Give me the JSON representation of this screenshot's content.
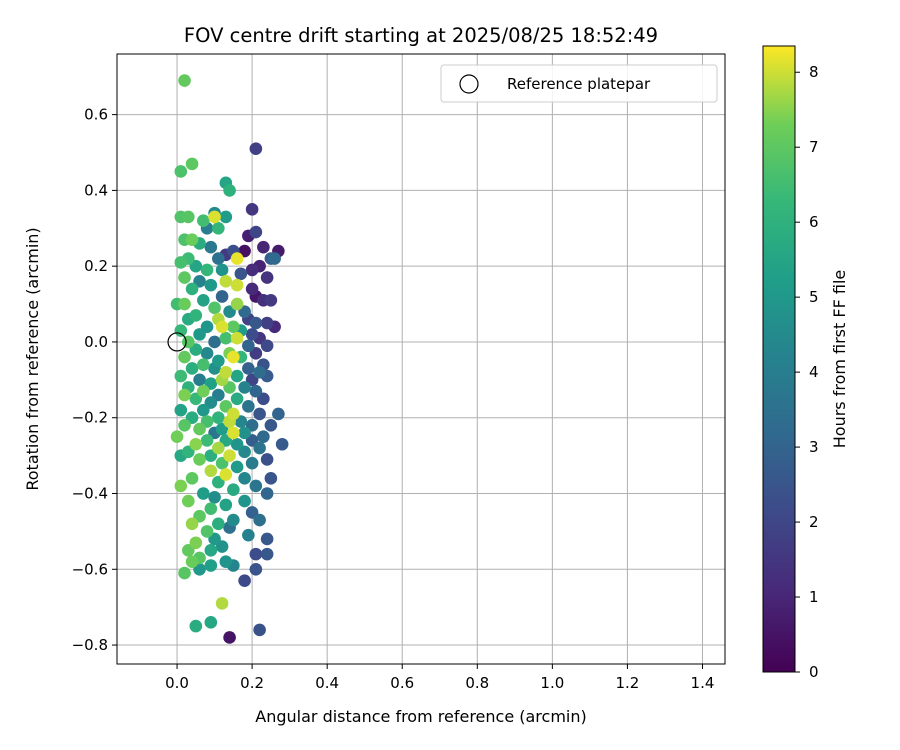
{
  "chart_data": {
    "type": "scatter",
    "title": "FOV centre drift starting at 2025/08/25 18:52:49",
    "xlabel": "Angular distance from reference (arcmin)",
    "ylabel": "Rotation from reference (arcmin)",
    "xlim": [
      -0.16,
      1.46
    ],
    "ylim": [
      -0.85,
      0.76
    ],
    "xticks": [
      "0.0",
      "0.2",
      "0.4",
      "0.6",
      "0.8",
      "1.0",
      "1.2",
      "1.4"
    ],
    "xtick_values": [
      0.0,
      0.2,
      0.4,
      0.6,
      0.8,
      1.0,
      1.2,
      1.4
    ],
    "yticks": [
      "−0.8",
      "−0.6",
      "−0.4",
      "−0.2",
      "0.0",
      "0.2",
      "0.4",
      "0.6"
    ],
    "ytick_values": [
      -0.8,
      -0.6,
      -0.4,
      -0.2,
      0.0,
      0.2,
      0.4,
      0.6
    ],
    "grid": true,
    "legend": {
      "placement": "top-right",
      "entries": [
        "Reference platepar"
      ]
    },
    "reference_point": {
      "x": 0.0,
      "y": 0.0,
      "marker": "open-circle"
    },
    "colorbar": {
      "label": "Hours from first FF file",
      "colormap": "viridis",
      "range": [
        0,
        8.35
      ],
      "ticks": [
        "0",
        "1",
        "2",
        "3",
        "4",
        "5",
        "6",
        "7",
        "8"
      ],
      "tick_values": [
        0,
        1,
        2,
        3,
        4,
        5,
        6,
        7,
        8
      ]
    },
    "points": [
      {
        "x": 0.02,
        "y": 0.69,
        "c": 7.1
      },
      {
        "x": 0.04,
        "y": 0.47,
        "c": 7.0
      },
      {
        "x": 0.01,
        "y": 0.45,
        "c": 6.7
      },
      {
        "x": 0.21,
        "y": 0.51,
        "c": 1.8
      },
      {
        "x": 0.13,
        "y": 0.42,
        "c": 5.5
      },
      {
        "x": 0.14,
        "y": 0.4,
        "c": 6.0
      },
      {
        "x": 0.2,
        "y": 0.35,
        "c": 1.5
      },
      {
        "x": 0.1,
        "y": 0.34,
        "c": 4.5
      },
      {
        "x": 0.13,
        "y": 0.33,
        "c": 5.2
      },
      {
        "x": 0.01,
        "y": 0.33,
        "c": 6.8
      },
      {
        "x": 0.03,
        "y": 0.33,
        "c": 6.9
      },
      {
        "x": 0.07,
        "y": 0.32,
        "c": 6.5
      },
      {
        "x": 0.1,
        "y": 0.33,
        "c": 8.1
      },
      {
        "x": 0.21,
        "y": 0.29,
        "c": 2.0
      },
      {
        "x": 0.19,
        "y": 0.28,
        "c": 0.8
      },
      {
        "x": 0.11,
        "y": 0.3,
        "c": 6.2
      },
      {
        "x": 0.08,
        "y": 0.3,
        "c": 4.0
      },
      {
        "x": 0.04,
        "y": 0.27,
        "c": 7.2
      },
      {
        "x": 0.02,
        "y": 0.27,
        "c": 6.7
      },
      {
        "x": 0.06,
        "y": 0.26,
        "c": 5.8
      },
      {
        "x": 0.09,
        "y": 0.25,
        "c": 3.8
      },
      {
        "x": 0.18,
        "y": 0.24,
        "c": 0.4
      },
      {
        "x": 0.23,
        "y": 0.25,
        "c": 1.0
      },
      {
        "x": 0.27,
        "y": 0.24,
        "c": 0.7
      },
      {
        "x": 0.15,
        "y": 0.24,
        "c": 2.3
      },
      {
        "x": 0.13,
        "y": 0.23,
        "c": 1.6
      },
      {
        "x": 0.25,
        "y": 0.22,
        "c": 2.8
      },
      {
        "x": 0.26,
        "y": 0.22,
        "c": 3.2
      },
      {
        "x": 0.16,
        "y": 0.22,
        "c": 8.2
      },
      {
        "x": 0.11,
        "y": 0.22,
        "c": 3.5
      },
      {
        "x": 0.03,
        "y": 0.22,
        "c": 6.4
      },
      {
        "x": 0.01,
        "y": 0.21,
        "c": 6.6
      },
      {
        "x": 0.05,
        "y": 0.2,
        "c": 5.5
      },
      {
        "x": 0.22,
        "y": 0.2,
        "c": 0.9
      },
      {
        "x": 0.2,
        "y": 0.19,
        "c": 1.2
      },
      {
        "x": 0.08,
        "y": 0.19,
        "c": 6.2
      },
      {
        "x": 0.12,
        "y": 0.19,
        "c": 4.8
      },
      {
        "x": 0.17,
        "y": 0.18,
        "c": 2.5
      },
      {
        "x": 0.24,
        "y": 0.17,
        "c": 1.4
      },
      {
        "x": 0.02,
        "y": 0.17,
        "c": 7.0
      },
      {
        "x": 0.06,
        "y": 0.16,
        "c": 4.2
      },
      {
        "x": 0.13,
        "y": 0.16,
        "c": 7.9
      },
      {
        "x": 0.16,
        "y": 0.15,
        "c": 8.0
      },
      {
        "x": 0.09,
        "y": 0.15,
        "c": 5.0
      },
      {
        "x": 0.04,
        "y": 0.14,
        "c": 6.0
      },
      {
        "x": 0.2,
        "y": 0.14,
        "c": 1.1
      },
      {
        "x": 0.21,
        "y": 0.12,
        "c": 0.6
      },
      {
        "x": 0.23,
        "y": 0.11,
        "c": 1.3
      },
      {
        "x": 0.25,
        "y": 0.11,
        "c": 1.6
      },
      {
        "x": 0.12,
        "y": 0.12,
        "c": 3.0
      },
      {
        "x": 0.07,
        "y": 0.11,
        "c": 5.4
      },
      {
        "x": 0.02,
        "y": 0.1,
        "c": 7.2
      },
      {
        "x": 0.0,
        "y": 0.1,
        "c": 6.5
      },
      {
        "x": 0.16,
        "y": 0.1,
        "c": 7.6
      },
      {
        "x": 0.1,
        "y": 0.09,
        "c": 6.8
      },
      {
        "x": 0.18,
        "y": 0.08,
        "c": 3.2
      },
      {
        "x": 0.14,
        "y": 0.08,
        "c": 4.5
      },
      {
        "x": 0.05,
        "y": 0.07,
        "c": 6.1
      },
      {
        "x": 0.03,
        "y": 0.06,
        "c": 5.7
      },
      {
        "x": 0.11,
        "y": 0.06,
        "c": 7.8
      },
      {
        "x": 0.19,
        "y": 0.06,
        "c": 1.9
      },
      {
        "x": 0.21,
        "y": 0.05,
        "c": 2.6
      },
      {
        "x": 0.24,
        "y": 0.05,
        "c": 1.8
      },
      {
        "x": 0.12,
        "y": 0.04,
        "c": 8.1
      },
      {
        "x": 0.15,
        "y": 0.04,
        "c": 7.0
      },
      {
        "x": 0.08,
        "y": 0.04,
        "c": 4.9
      },
      {
        "x": 0.26,
        "y": 0.04,
        "c": 1.1
      },
      {
        "x": 0.01,
        "y": 0.03,
        "c": 6.3
      },
      {
        "x": 0.17,
        "y": 0.03,
        "c": 5.2
      },
      {
        "x": 0.06,
        "y": 0.02,
        "c": 5.0
      },
      {
        "x": 0.2,
        "y": 0.02,
        "c": 2.2
      },
      {
        "x": 0.13,
        "y": 0.01,
        "c": 6.6
      },
      {
        "x": 0.22,
        "y": 0.01,
        "c": 1.5
      },
      {
        "x": 0.16,
        "y": 0.01,
        "c": 8.0
      },
      {
        "x": 0.03,
        "y": 0.0,
        "c": 6.9
      },
      {
        "x": 0.1,
        "y": 0.0,
        "c": 3.4
      },
      {
        "x": 0.19,
        "y": -0.01,
        "c": 3.0
      },
      {
        "x": 0.24,
        "y": -0.01,
        "c": 2.1
      },
      {
        "x": 0.05,
        "y": -0.02,
        "c": 5.8
      },
      {
        "x": 0.14,
        "y": -0.03,
        "c": 7.4
      },
      {
        "x": 0.08,
        "y": -0.03,
        "c": 4.4
      },
      {
        "x": 0.21,
        "y": -0.03,
        "c": 1.7
      },
      {
        "x": 0.02,
        "y": -0.04,
        "c": 7.1
      },
      {
        "x": 0.17,
        "y": -0.04,
        "c": 6.2
      },
      {
        "x": 0.11,
        "y": -0.05,
        "c": 5.1
      },
      {
        "x": 0.15,
        "y": -0.04,
        "c": 8.2
      },
      {
        "x": 0.07,
        "y": -0.06,
        "c": 6.6
      },
      {
        "x": 0.23,
        "y": -0.06,
        "c": 2.4
      },
      {
        "x": 0.19,
        "y": -0.07,
        "c": 2.9
      },
      {
        "x": 0.04,
        "y": -0.07,
        "c": 5.9
      },
      {
        "x": 0.13,
        "y": -0.08,
        "c": 7.9
      },
      {
        "x": 0.1,
        "y": -0.07,
        "c": 4.7
      },
      {
        "x": 0.22,
        "y": -0.08,
        "c": 3.3
      },
      {
        "x": 0.01,
        "y": -0.09,
        "c": 6.4
      },
      {
        "x": 0.16,
        "y": -0.09,
        "c": 5.5
      },
      {
        "x": 0.06,
        "y": -0.1,
        "c": 3.9
      },
      {
        "x": 0.2,
        "y": -0.1,
        "c": 2.0
      },
      {
        "x": 0.12,
        "y": -0.1,
        "c": 7.7
      },
      {
        "x": 0.24,
        "y": -0.09,
        "c": 2.7
      },
      {
        "x": 0.09,
        "y": -0.11,
        "c": 5.3
      },
      {
        "x": 0.03,
        "y": -0.12,
        "c": 6.0
      },
      {
        "x": 0.18,
        "y": -0.12,
        "c": 4.2
      },
      {
        "x": 0.14,
        "y": -0.12,
        "c": 6.9
      },
      {
        "x": 0.07,
        "y": -0.13,
        "c": 7.3
      },
      {
        "x": 0.21,
        "y": -0.13,
        "c": 3.1
      },
      {
        "x": 0.11,
        "y": -0.14,
        "c": 4.0
      },
      {
        "x": 0.02,
        "y": -0.14,
        "c": 7.4
      },
      {
        "x": 0.16,
        "y": -0.15,
        "c": 5.7
      },
      {
        "x": 0.05,
        "y": -0.15,
        "c": 6.3
      },
      {
        "x": 0.23,
        "y": -0.15,
        "c": 2.2
      },
      {
        "x": 0.09,
        "y": -0.16,
        "c": 4.6
      },
      {
        "x": 0.19,
        "y": -0.17,
        "c": 3.6
      },
      {
        "x": 0.13,
        "y": -0.17,
        "c": 7.0
      },
      {
        "x": 0.01,
        "y": -0.18,
        "c": 5.4
      },
      {
        "x": 0.07,
        "y": -0.18,
        "c": 5.0
      },
      {
        "x": 0.27,
        "y": -0.19,
        "c": 3.0
      },
      {
        "x": 0.15,
        "y": -0.19,
        "c": 8.0
      },
      {
        "x": 0.22,
        "y": -0.19,
        "c": 2.5
      },
      {
        "x": 0.11,
        "y": -0.2,
        "c": 6.1
      },
      {
        "x": 0.04,
        "y": -0.2,
        "c": 5.8
      },
      {
        "x": 0.17,
        "y": -0.21,
        "c": 4.3
      },
      {
        "x": 0.08,
        "y": -0.21,
        "c": 6.6
      },
      {
        "x": 0.14,
        "y": -0.21,
        "c": 7.9
      },
      {
        "x": 0.2,
        "y": -0.22,
        "c": 3.4
      },
      {
        "x": 0.02,
        "y": -0.22,
        "c": 6.9
      },
      {
        "x": 0.25,
        "y": -0.22,
        "c": 2.6
      },
      {
        "x": 0.12,
        "y": -0.23,
        "c": 5.2
      },
      {
        "x": 0.06,
        "y": -0.23,
        "c": 7.1
      },
      {
        "x": 0.18,
        "y": -0.24,
        "c": 4.7
      },
      {
        "x": 0.1,
        "y": -0.24,
        "c": 3.7
      },
      {
        "x": 0.15,
        "y": -0.24,
        "c": 8.1
      },
      {
        "x": 0.0,
        "y": -0.25,
        "c": 7.3
      },
      {
        "x": 0.23,
        "y": -0.25,
        "c": 3.2
      },
      {
        "x": 0.08,
        "y": -0.26,
        "c": 6.4
      },
      {
        "x": 0.13,
        "y": -0.26,
        "c": 5.6
      },
      {
        "x": 0.2,
        "y": -0.26,
        "c": 2.8
      },
      {
        "x": 0.05,
        "y": -0.27,
        "c": 7.5
      },
      {
        "x": 0.28,
        "y": -0.27,
        "c": 2.7
      },
      {
        "x": 0.16,
        "y": -0.27,
        "c": 4.9
      },
      {
        "x": 0.11,
        "y": -0.28,
        "c": 7.7
      },
      {
        "x": 0.22,
        "y": -0.28,
        "c": 3.6
      },
      {
        "x": 0.03,
        "y": -0.29,
        "c": 6.1
      },
      {
        "x": 0.18,
        "y": -0.29,
        "c": 4.4
      },
      {
        "x": 0.09,
        "y": -0.3,
        "c": 5.9
      },
      {
        "x": 0.14,
        "y": -0.3,
        "c": 8.0
      },
      {
        "x": 0.01,
        "y": -0.3,
        "c": 5.6
      },
      {
        "x": 0.24,
        "y": -0.31,
        "c": 2.3
      },
      {
        "x": 0.06,
        "y": -0.31,
        "c": 7.2
      },
      {
        "x": 0.2,
        "y": -0.32,
        "c": 3.9
      },
      {
        "x": 0.12,
        "y": -0.32,
        "c": 6.7
      },
      {
        "x": 0.16,
        "y": -0.33,
        "c": 5.1
      },
      {
        "x": 0.09,
        "y": -0.34,
        "c": 7.8
      },
      {
        "x": 0.13,
        "y": -0.35,
        "c": 8.1
      },
      {
        "x": 0.04,
        "y": -0.36,
        "c": 7.0
      },
      {
        "x": 0.18,
        "y": -0.36,
        "c": 4.3
      },
      {
        "x": 0.25,
        "y": -0.36,
        "c": 2.5
      },
      {
        "x": 0.11,
        "y": -0.37,
        "c": 6.0
      },
      {
        "x": 0.01,
        "y": -0.38,
        "c": 7.4
      },
      {
        "x": 0.21,
        "y": -0.38,
        "c": 3.7
      },
      {
        "x": 0.15,
        "y": -0.39,
        "c": 5.7
      },
      {
        "x": 0.07,
        "y": -0.4,
        "c": 5.2
      },
      {
        "x": 0.24,
        "y": -0.4,
        "c": 3.1
      },
      {
        "x": 0.1,
        "y": -0.41,
        "c": 4.6
      },
      {
        "x": 0.03,
        "y": -0.42,
        "c": 7.3
      },
      {
        "x": 0.18,
        "y": -0.42,
        "c": 4.9
      },
      {
        "x": 0.13,
        "y": -0.43,
        "c": 5.4
      },
      {
        "x": 0.09,
        "y": -0.44,
        "c": 6.5
      },
      {
        "x": 0.2,
        "y": -0.45,
        "c": 2.9
      },
      {
        "x": 0.06,
        "y": -0.46,
        "c": 7.0
      },
      {
        "x": 0.15,
        "y": -0.47,
        "c": 4.5
      },
      {
        "x": 0.22,
        "y": -0.47,
        "c": 3.4
      },
      {
        "x": 0.11,
        "y": -0.48,
        "c": 5.9
      },
      {
        "x": 0.04,
        "y": -0.48,
        "c": 7.6
      },
      {
        "x": 0.14,
        "y": -0.49,
        "c": 3.5
      },
      {
        "x": 0.08,
        "y": -0.5,
        "c": 6.8
      },
      {
        "x": 0.19,
        "y": -0.51,
        "c": 4.1
      },
      {
        "x": 0.24,
        "y": -0.52,
        "c": 2.6
      },
      {
        "x": 0.1,
        "y": -0.52,
        "c": 5.0
      },
      {
        "x": 0.05,
        "y": -0.53,
        "c": 7.4
      },
      {
        "x": 0.12,
        "y": -0.54,
        "c": 4.8
      },
      {
        "x": 0.09,
        "y": -0.55,
        "c": 5.6
      },
      {
        "x": 0.03,
        "y": -0.55,
        "c": 7.1
      },
      {
        "x": 0.21,
        "y": -0.56,
        "c": 2.2
      },
      {
        "x": 0.24,
        "y": -0.56,
        "c": 2.6
      },
      {
        "x": 0.06,
        "y": -0.57,
        "c": 6.9
      },
      {
        "x": 0.13,
        "y": -0.58,
        "c": 4.9
      },
      {
        "x": 0.04,
        "y": -0.58,
        "c": 7.2
      },
      {
        "x": 0.15,
        "y": -0.59,
        "c": 4.3
      },
      {
        "x": 0.09,
        "y": -0.59,
        "c": 5.3
      },
      {
        "x": 0.06,
        "y": -0.6,
        "c": 5.0
      },
      {
        "x": 0.21,
        "y": -0.6,
        "c": 2.5
      },
      {
        "x": 0.02,
        "y": -0.61,
        "c": 6.9
      },
      {
        "x": 0.18,
        "y": -0.63,
        "c": 2.1
      },
      {
        "x": 0.12,
        "y": -0.69,
        "c": 7.8
      },
      {
        "x": 0.09,
        "y": -0.74,
        "c": 5.6
      },
      {
        "x": 0.05,
        "y": -0.75,
        "c": 5.8
      },
      {
        "x": 0.22,
        "y": -0.76,
        "c": 2.4
      },
      {
        "x": 0.14,
        "y": -0.78,
        "c": 0.5
      }
    ]
  }
}
